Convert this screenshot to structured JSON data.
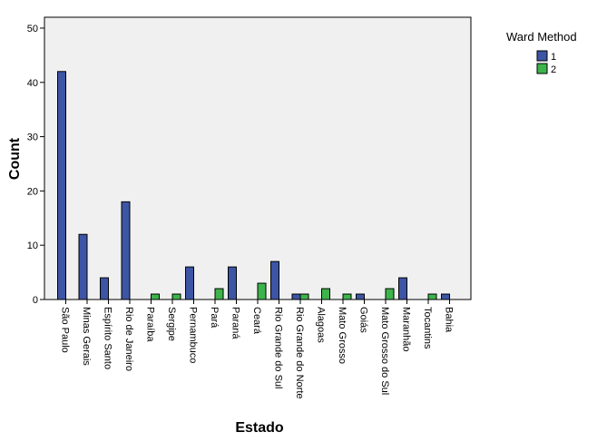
{
  "chart_data": {
    "type": "bar",
    "title": "",
    "xlabel": "Estado",
    "ylabel": "Count",
    "ylim": [
      0,
      52
    ],
    "yticks": [
      0,
      10,
      20,
      30,
      40,
      50
    ],
    "grid": false,
    "legend": {
      "title": "Ward Method",
      "position": "top-right"
    },
    "categories": [
      "São Paulo",
      "Minas Gerais",
      "Espírito Santo",
      "Rio de Janeiro",
      "Paraíba",
      "Sergipe",
      "Pernambuco",
      "Pará",
      "Paraná",
      "Ceará",
      "Rio Grande do Sul",
      "Rio Grande do Norte",
      "Alagoas",
      "Mato Grosso",
      "Goiás",
      "Mato Grosso do Sul",
      "Maranhão",
      "Tocantins",
      "Bahia"
    ],
    "series": [
      {
        "name": "1",
        "color": "#3d55a5",
        "values": [
          42,
          12,
          4,
          18,
          0,
          0,
          6,
          0,
          6,
          0,
          7,
          1,
          0,
          0,
          1,
          0,
          4,
          0,
          1
        ]
      },
      {
        "name": "2",
        "color": "#3cb44b",
        "values": [
          0,
          0,
          0,
          0,
          1,
          1,
          0,
          2,
          0,
          3,
          0,
          1,
          2,
          1,
          0,
          2,
          0,
          1,
          0
        ]
      }
    ]
  }
}
